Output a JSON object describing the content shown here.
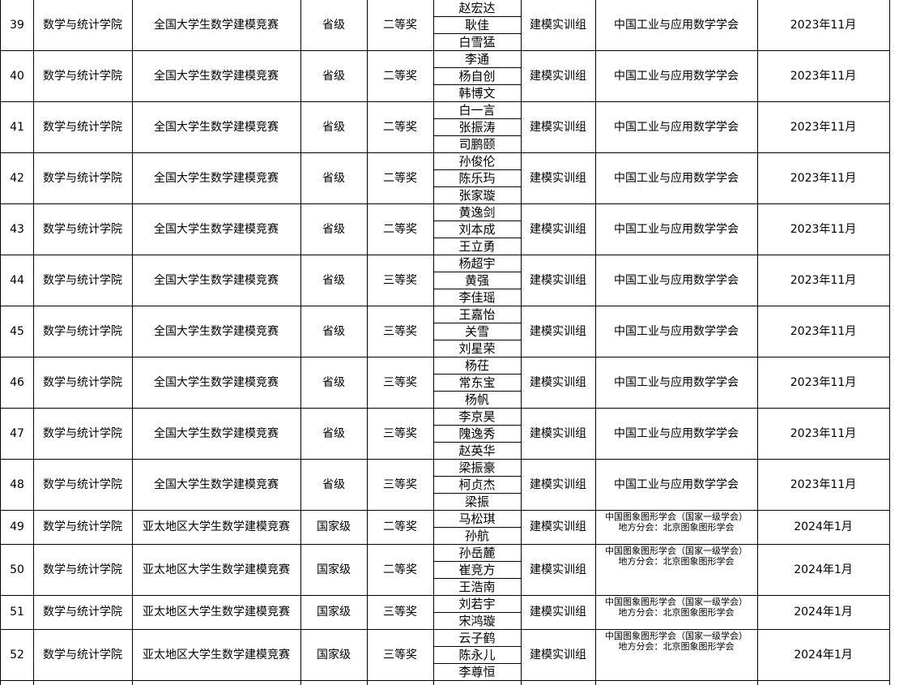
{
  "table": {
    "rows": [
      {
        "no": "39",
        "college": "数学与统计学院",
        "competition": "全国大学生数学建模竞赛",
        "level": "省级",
        "award": "二等奖",
        "members": [
          "赵宏达",
          "耿佳",
          "白雪猛"
        ],
        "group": "建模实训组",
        "organizer": "中国工业与应用数学学会",
        "date": "2023年11月"
      },
      {
        "no": "40",
        "college": "数学与统计学院",
        "competition": "全国大学生数学建模竞赛",
        "level": "省级",
        "award": "二等奖",
        "members": [
          "李通",
          "杨自创",
          "韩博文"
        ],
        "group": "建模实训组",
        "organizer": "中国工业与应用数学学会",
        "date": "2023年11月"
      },
      {
        "no": "41",
        "college": "数学与统计学院",
        "competition": "全国大学生数学建模竞赛",
        "level": "省级",
        "award": "二等奖",
        "members": [
          "白一言",
          "张振涛",
          "司鹏颐"
        ],
        "group": "建模实训组",
        "organizer": "中国工业与应用数学学会",
        "date": "2023年11月"
      },
      {
        "no": "42",
        "college": "数学与统计学院",
        "competition": "全国大学生数学建模竞赛",
        "level": "省级",
        "award": "二等奖",
        "members": [
          "孙俊伦",
          "陈乐玙",
          "张家璇"
        ],
        "group": "建模实训组",
        "organizer": "中国工业与应用数学学会",
        "date": "2023年11月"
      },
      {
        "no": "43",
        "college": "数学与统计学院",
        "competition": "全国大学生数学建模竞赛",
        "level": "省级",
        "award": "二等奖",
        "members": [
          "黄逸剑",
          "刘本成",
          "王立勇"
        ],
        "group": "建模实训组",
        "organizer": "中国工业与应用数学学会",
        "date": "2023年11月"
      },
      {
        "no": "44",
        "college": "数学与统计学院",
        "competition": "全国大学生数学建模竞赛",
        "level": "省级",
        "award": "三等奖",
        "members": [
          "杨超宇",
          "黄强",
          "李佳瑶"
        ],
        "group": "建模实训组",
        "organizer": "中国工业与应用数学学会",
        "date": "2023年11月"
      },
      {
        "no": "45",
        "college": "数学与统计学院",
        "competition": "全国大学生数学建模竞赛",
        "level": "省级",
        "award": "三等奖",
        "members": [
          "王嘉怡",
          "关雪",
          "刘星荣"
        ],
        "group": "建模实训组",
        "organizer": "中国工业与应用数学学会",
        "date": "2023年11月"
      },
      {
        "no": "46",
        "college": "数学与统计学院",
        "competition": "全国大学生数学建模竞赛",
        "level": "省级",
        "award": "三等奖",
        "members": [
          "杨茌",
          "常东宝",
          "杨帆"
        ],
        "group": "建模实训组",
        "organizer": "中国工业与应用数学学会",
        "date": "2023年11月"
      },
      {
        "no": "47",
        "college": "数学与统计学院",
        "competition": "全国大学生数学建模竞赛",
        "level": "省级",
        "award": "三等奖",
        "members": [
          "李京昊",
          "隗逸秀",
          "赵英华"
        ],
        "group": "建模实训组",
        "organizer": "中国工业与应用数学学会",
        "date": "2023年11月"
      },
      {
        "no": "48",
        "college": "数学与统计学院",
        "competition": "全国大学生数学建模竞赛",
        "level": "省级",
        "award": "三等奖",
        "members": [
          "梁振豪",
          "柯贞杰",
          "梁振"
        ],
        "group": "建模实训组",
        "organizer": "中国工业与应用数学学会",
        "date": "2023年11月"
      },
      {
        "no": "49",
        "college": "数学与统计学院",
        "competition": "亚太地区大学生数学建模竞赛",
        "level": "国家级",
        "award": "二等奖",
        "members": [
          "马松琪",
          "孙航"
        ],
        "group": "建模实训组",
        "organizer": "中国图象图形学会（国家一级学会）\n地方分会：北京图象图形学会",
        "date": "2024年1月"
      },
      {
        "no": "50",
        "college": "数学与统计学院",
        "competition": "亚太地区大学生数学建模竞赛",
        "level": "国家级",
        "award": "二等奖",
        "members": [
          "孙岳麓",
          "崔竞方",
          "王浩南"
        ],
        "group": "建模实训组",
        "organizer": "中国图象图形学会（国家一级学会）\n地方分会：北京图象图形学会",
        "date": "2024年1月"
      },
      {
        "no": "51",
        "college": "数学与统计学院",
        "competition": "亚太地区大学生数学建模竞赛",
        "level": "国家级",
        "award": "三等奖",
        "members": [
          "刘若宇",
          "宋鸿璇"
        ],
        "group": "建模实训组",
        "organizer": "中国图象图形学会（国家一级学会）\n地方分会：北京图象图形学会",
        "date": "2024年1月"
      },
      {
        "no": "52",
        "college": "数学与统计学院",
        "competition": "亚太地区大学生数学建模竞赛",
        "level": "国家级",
        "award": "三等奖",
        "members": [
          "云子鹤",
          "陈永儿",
          "李尊恒"
        ],
        "group": "建模实训组",
        "organizer": "中国图象图形学会（国家一级学会）\n地方分会：北京图象图形学会",
        "date": "2024年1月"
      }
    ]
  }
}
